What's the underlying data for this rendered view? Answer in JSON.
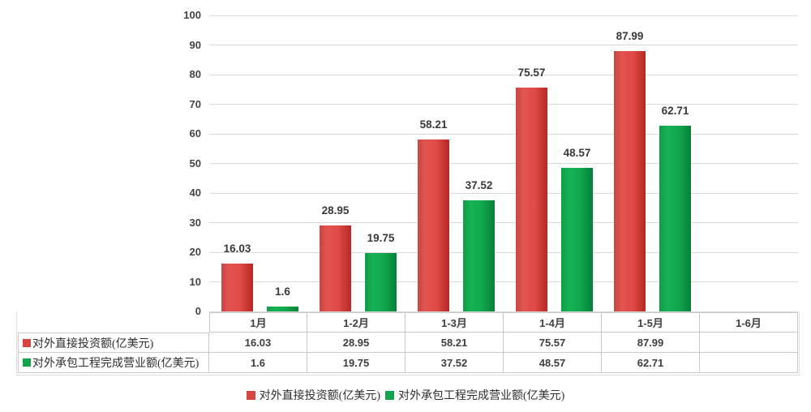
{
  "chart_data": {
    "type": "bar",
    "categories": [
      "1月",
      "1-2月",
      "1-3月",
      "1-4月",
      "1-5月",
      "1-6月"
    ],
    "series": [
      {
        "name": "对外直接投资额(亿美元)",
        "color": "#d6453f",
        "gradient": [
          "#c84641 0%",
          "#e35450 25%",
          "#e04a46 60%",
          "#b52823 100%"
        ],
        "values": [
          16.03,
          28.95,
          58.21,
          75.57,
          87.99,
          null
        ]
      },
      {
        "name": "对外承包工程完成营业额(亿美元)",
        "color": "#13a34d",
        "gradient": [
          "#0f9c49 0%",
          "#16b254 25%",
          "#10a84e 60%",
          "#078038 100%"
        ],
        "values": [
          1.6,
          19.75,
          37.52,
          48.57,
          62.71,
          null
        ]
      }
    ],
    "ylim": [
      0,
      100
    ],
    "ytick_step": 10,
    "grid": true,
    "legend_position": "bottom",
    "data_table": true,
    "title": "",
    "xlabel": "",
    "ylabel": ""
  }
}
